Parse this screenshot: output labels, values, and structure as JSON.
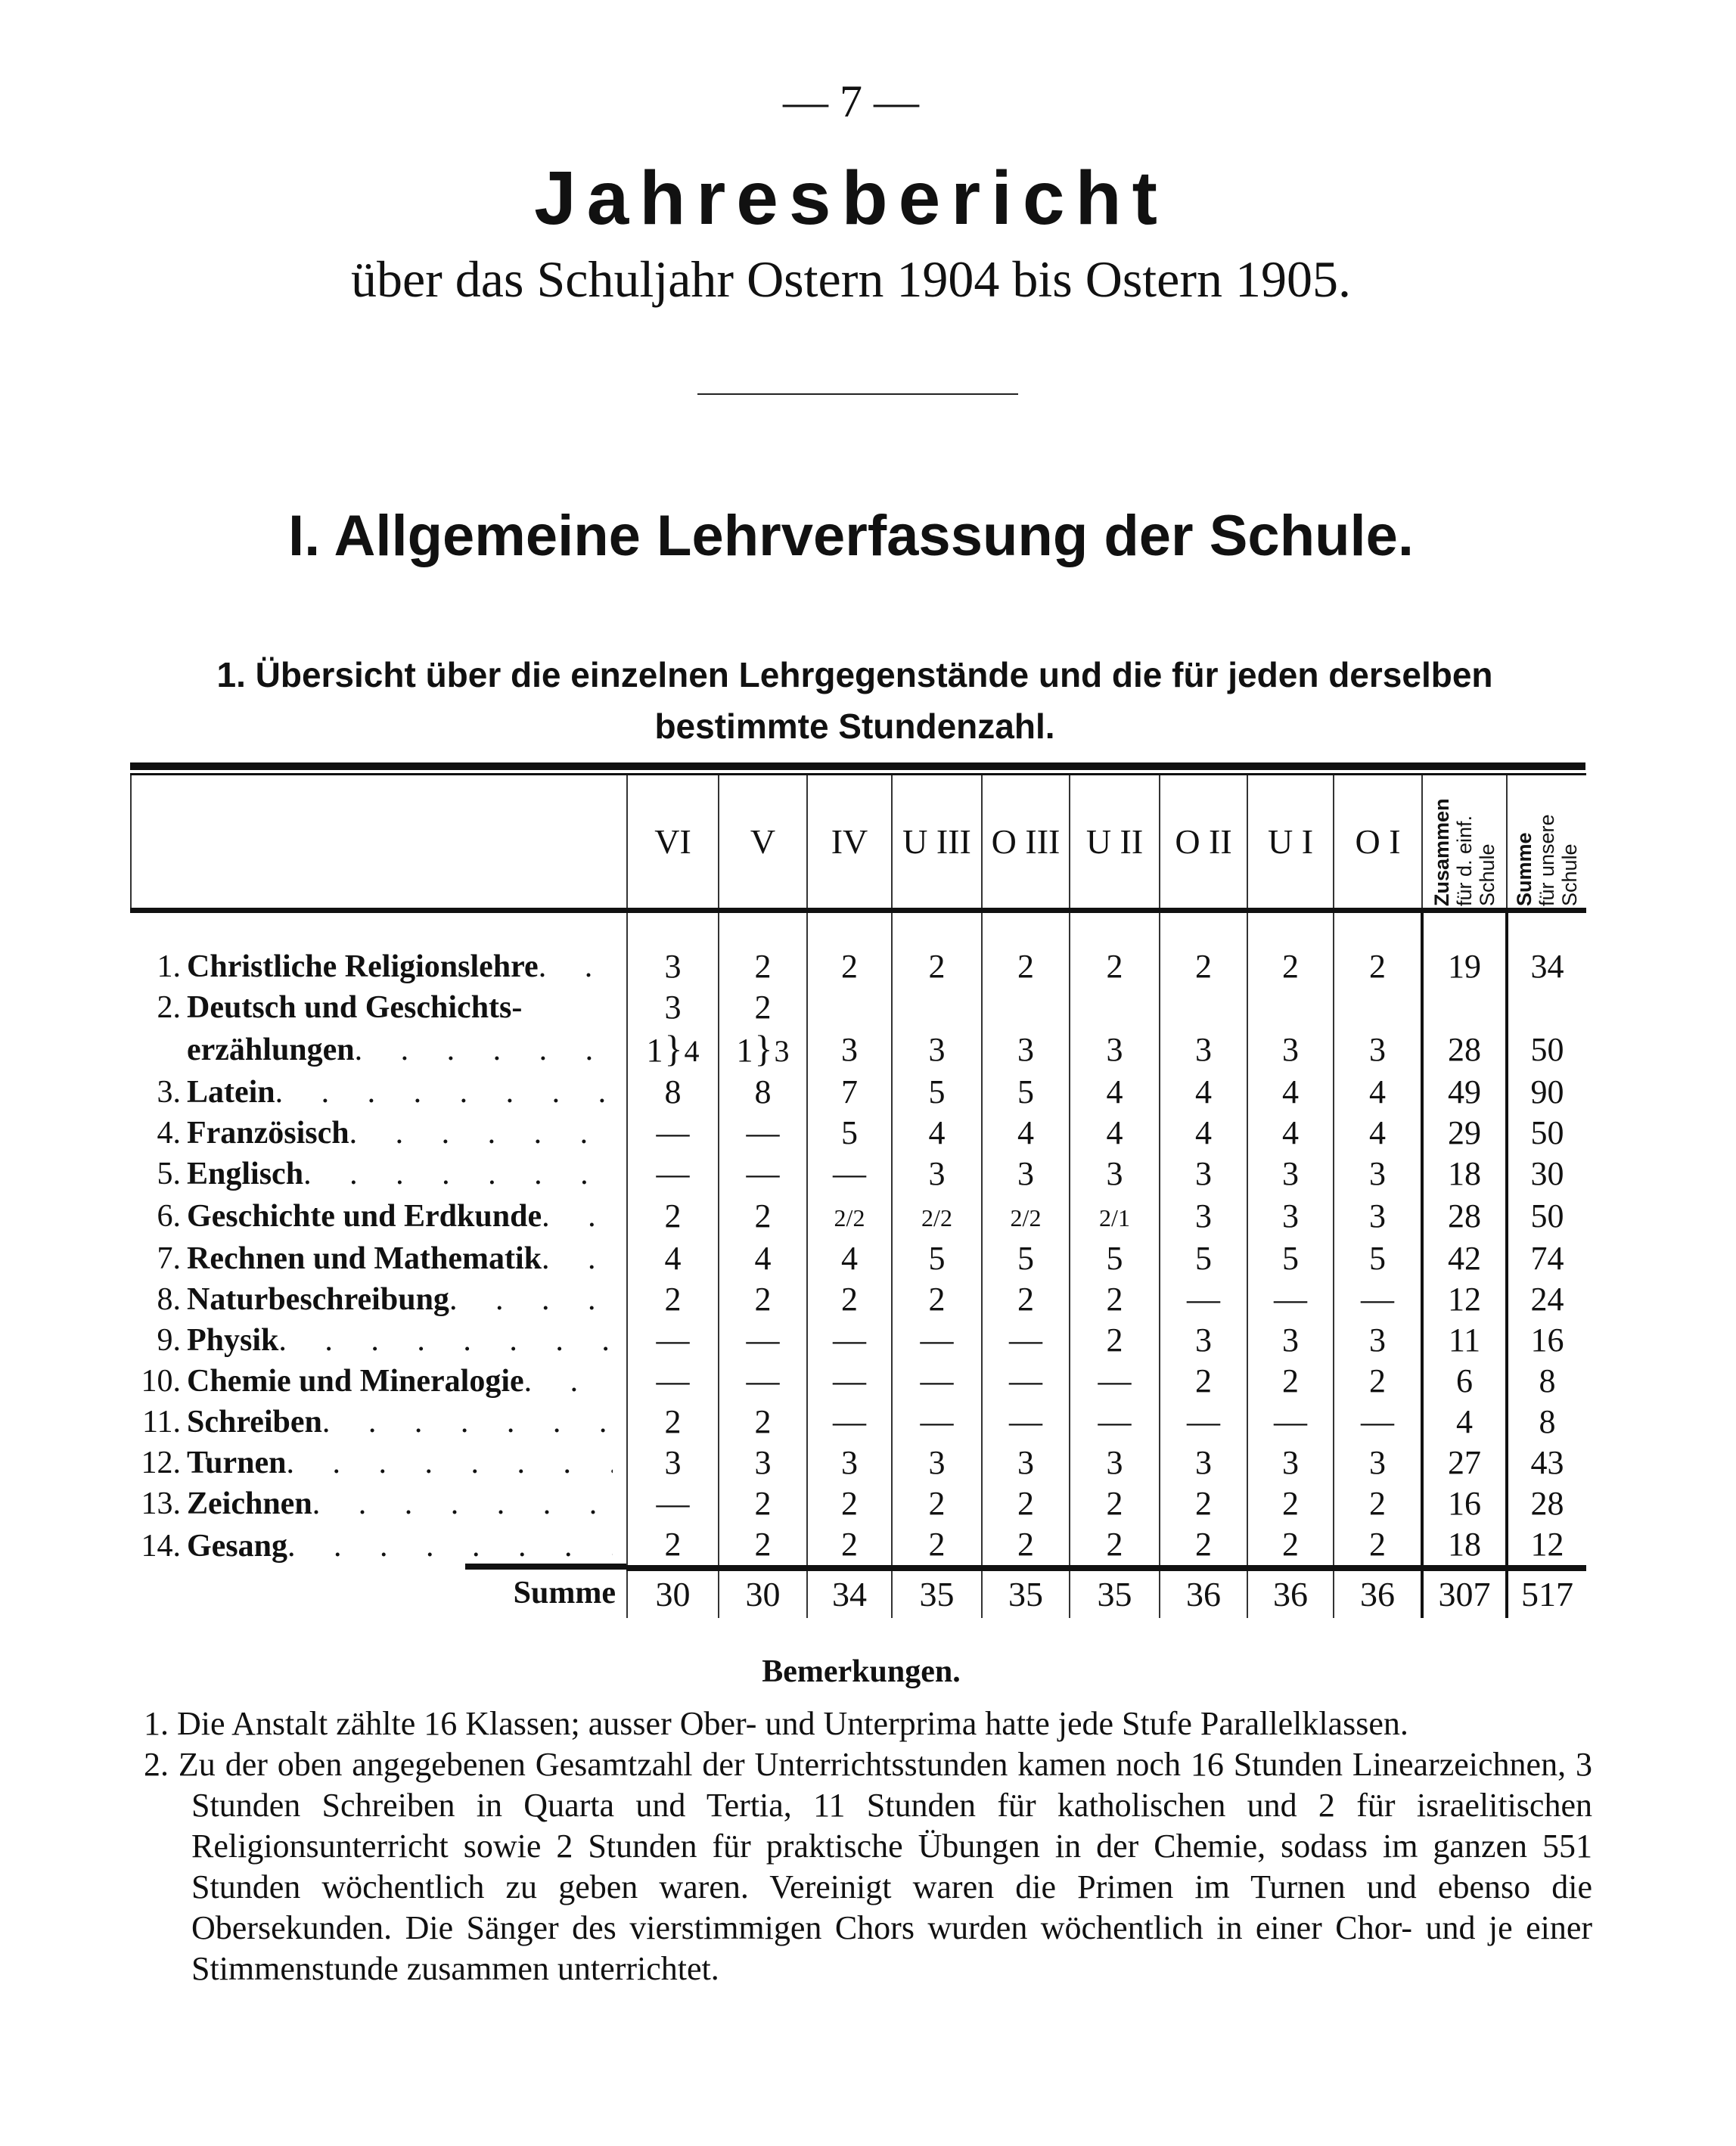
{
  "page_number": "— 7 —",
  "title": "Jahresbericht",
  "subtitle": "über das Schuljahr Ostern 1904 bis Ostern 1905.",
  "section_heading": "I. Allgemeine Lehrverfassung der Schule.",
  "subsection_heading": "1. Übersicht über die einzelnen Lehrgegenstände und die für jeden derselben bestimmte Stundenzahl.",
  "table": {
    "columns": [
      "VI",
      "V",
      "IV",
      "U III",
      "O III",
      "U II",
      "O II",
      "U I",
      "O I"
    ],
    "total_header": {
      "bold": "Zusammen",
      "rest": "für d. einf. Schule"
    },
    "sum_header": {
      "bold": "Summe",
      "rest": "für unsere Schule"
    },
    "rows": [
      {
        "num": "1.",
        "label": "Christliche Religionslehre",
        "values": [
          "3",
          "2",
          "2",
          "2",
          "2",
          "2",
          "2",
          "2",
          "2"
        ],
        "total": "19",
        "sum": "34"
      },
      {
        "num": "2.",
        "label": "Deutsch und Geschichts-",
        "label2": "erzählungen",
        "split": [
          {
            "top": "3",
            "bottom": "1",
            "combined": "4"
          },
          {
            "top": "2",
            "bottom": "1",
            "combined": "3"
          }
        ],
        "values": [
          "",
          "",
          "3",
          "3",
          "3",
          "3",
          "3",
          "3",
          "3"
        ],
        "total": "28",
        "sum": "50"
      },
      {
        "num": "3.",
        "label": "Latein",
        "values": [
          "8",
          "8",
          "7",
          "5",
          "5",
          "4",
          "4",
          "4",
          "4"
        ],
        "total": "49",
        "sum": "90"
      },
      {
        "num": "4.",
        "label": "Französisch",
        "values": [
          "—",
          "—",
          "5",
          "4",
          "4",
          "4",
          "4",
          "4",
          "4"
        ],
        "total": "29",
        "sum": "50"
      },
      {
        "num": "5.",
        "label": "Englisch",
        "values": [
          "—",
          "—",
          "—",
          "3",
          "3",
          "3",
          "3",
          "3",
          "3"
        ],
        "total": "18",
        "sum": "30"
      },
      {
        "num": "6.",
        "label": "Geschichte und Erdkunde",
        "values": [
          "2",
          "2",
          "2/2",
          "2/2",
          "2/2",
          "2/1",
          "3",
          "3",
          "3"
        ],
        "total": "28",
        "sum": "50"
      },
      {
        "num": "7.",
        "label": "Rechnen und Mathematik",
        "values": [
          "4",
          "4",
          "4",
          "5",
          "5",
          "5",
          "5",
          "5",
          "5"
        ],
        "total": "42",
        "sum": "74"
      },
      {
        "num": "8.",
        "label": "Naturbeschreibung",
        "values": [
          "2",
          "2",
          "2",
          "2",
          "2",
          "2",
          "—",
          "—",
          "—"
        ],
        "total": "12",
        "sum": "24"
      },
      {
        "num": "9.",
        "label": "Physik",
        "values": [
          "—",
          "—",
          "—",
          "—",
          "—",
          "2",
          "3",
          "3",
          "3"
        ],
        "total": "11",
        "sum": "16"
      },
      {
        "num": "10.",
        "label": "Chemie und Mineralogie",
        "values": [
          "—",
          "—",
          "—",
          "—",
          "—",
          "—",
          "2",
          "2",
          "2"
        ],
        "total": "6",
        "sum": "8"
      },
      {
        "num": "11.",
        "label": "Schreiben",
        "values": [
          "2",
          "2",
          "—",
          "—",
          "—",
          "—",
          "—",
          "—",
          "—"
        ],
        "total": "4",
        "sum": "8"
      },
      {
        "num": "12.",
        "label": "Turnen",
        "values": [
          "3",
          "3",
          "3",
          "3",
          "3",
          "3",
          "3",
          "3",
          "3"
        ],
        "total": "27",
        "sum": "43"
      },
      {
        "num": "13.",
        "label": "Zeichnen",
        "values": [
          "—",
          "2",
          "2",
          "2",
          "2",
          "2",
          "2",
          "2",
          "2"
        ],
        "total": "16",
        "sum": "28"
      },
      {
        "num": "14.",
        "label": "Gesang",
        "values": [
          "2",
          "2",
          "2",
          "2",
          "2",
          "2",
          "2",
          "2",
          "2"
        ],
        "total": "18",
        "sum": "12"
      }
    ],
    "summe": {
      "label": "Summe",
      "values": [
        "30",
        "30",
        "34",
        "35",
        "35",
        "35",
        "36",
        "36",
        "36"
      ],
      "total": "307",
      "sum": "517"
    }
  },
  "remarks": {
    "title": "Bemerkungen.",
    "items": [
      "1. Die Anstalt zählte 16 Klassen; ausser Ober- und Unterprima hatte jede Stufe Parallelklassen.",
      "2. Zu der oben angegebenen Gesamtzahl der Unterrichtsstunden kamen noch 16 Stunden Linearzeichnen, 3 Stunden Schreiben in Quarta und Tertia, 11 Stunden für katholischen und 2 für israelitischen Religionsunterricht sowie 2 Stunden für praktische Übungen in der Chemie, sodass im ganzen 551 Stunden wöchentlich zu geben waren. Vereinigt waren die Primen im Turnen und ebenso die Obersekunden. Die Sänger des vierstimmigen Chors wurden wöchentlich in einer Chor- und je einer Stimmenstunde zusammen unterrichtet."
    ]
  }
}
